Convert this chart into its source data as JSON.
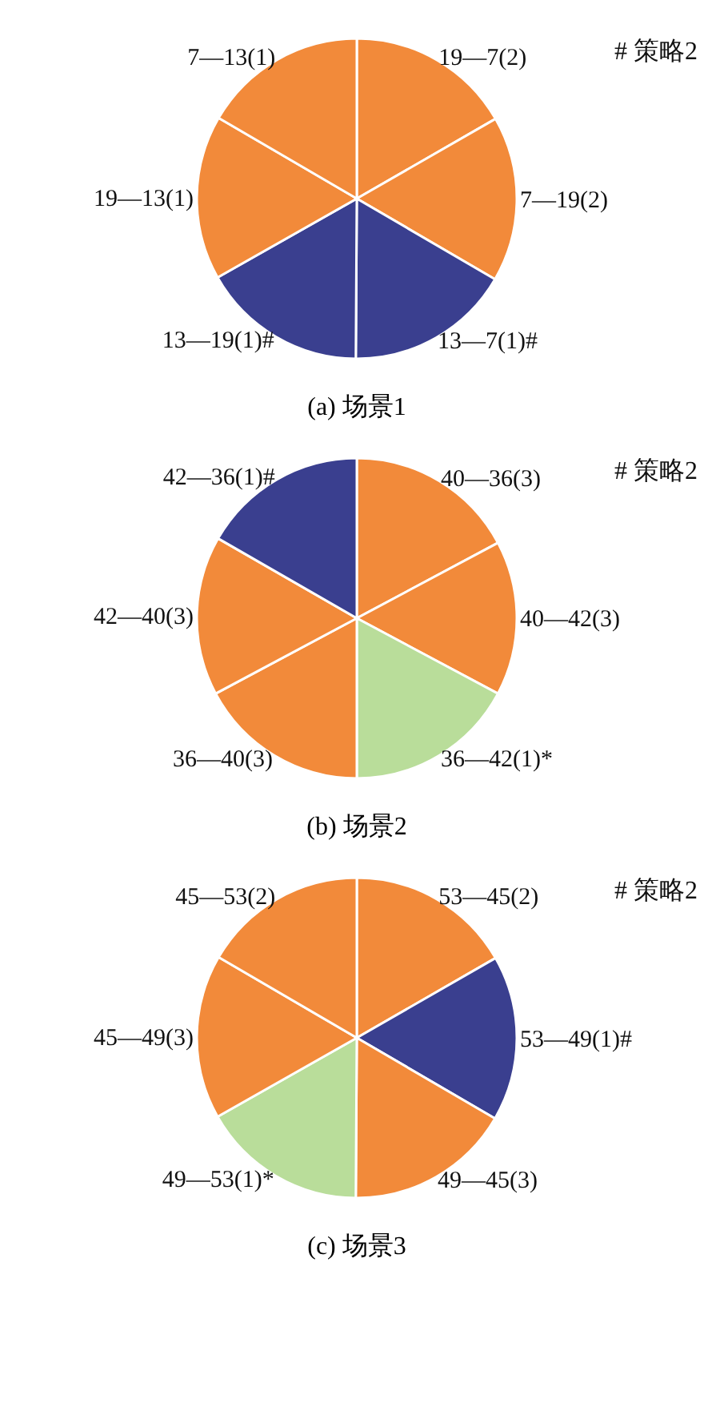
{
  "chart_data": [
    {
      "type": "pie",
      "title": "(a)  场景1",
      "annotations": [
        "# 策略2"
      ],
      "categories": [
        "19—7(2)",
        "7—19(2)",
        "13—7(1)#",
        "13—19(1)#",
        "19—13(1)",
        "7—13(1)"
      ],
      "values": [
        16.7,
        16.7,
        16.7,
        16.7,
        16.6,
        16.6
      ],
      "colors": [
        "#f28a3a",
        "#f28a3a",
        "#3a3f8f",
        "#3a3f8f",
        "#f28a3a",
        "#f28a3a"
      ]
    },
    {
      "type": "pie",
      "title": "(b)  场景2",
      "annotations": [
        "# 策略2"
      ],
      "categories": [
        "40—36(3)",
        "40—42(3)",
        "36—42(1)*",
        "36—40(3)",
        "42—40(3)",
        "42—36(1)#"
      ],
      "values": [
        17.2,
        15.6,
        17.2,
        17.2,
        16.1,
        16.7
      ],
      "colors": [
        "#f28a3a",
        "#f28a3a",
        "#b9dd9a",
        "#f28a3a",
        "#f28a3a",
        "#3a3f8f"
      ]
    },
    {
      "type": "pie",
      "title": "(c)  场景3",
      "annotations": [
        "# 策略2"
      ],
      "categories": [
        "53—45(2)",
        "53—49(1)#",
        "49—45(3)",
        "49—53(1)*",
        "45—49(3)",
        "45—53(2)"
      ],
      "values": [
        16.7,
        16.7,
        16.7,
        16.7,
        16.6,
        16.6
      ],
      "colors": [
        "#f28a3a",
        "#3a3f8f",
        "#f28a3a",
        "#b9dd9a",
        "#f28a3a",
        "#f28a3a"
      ]
    }
  ]
}
